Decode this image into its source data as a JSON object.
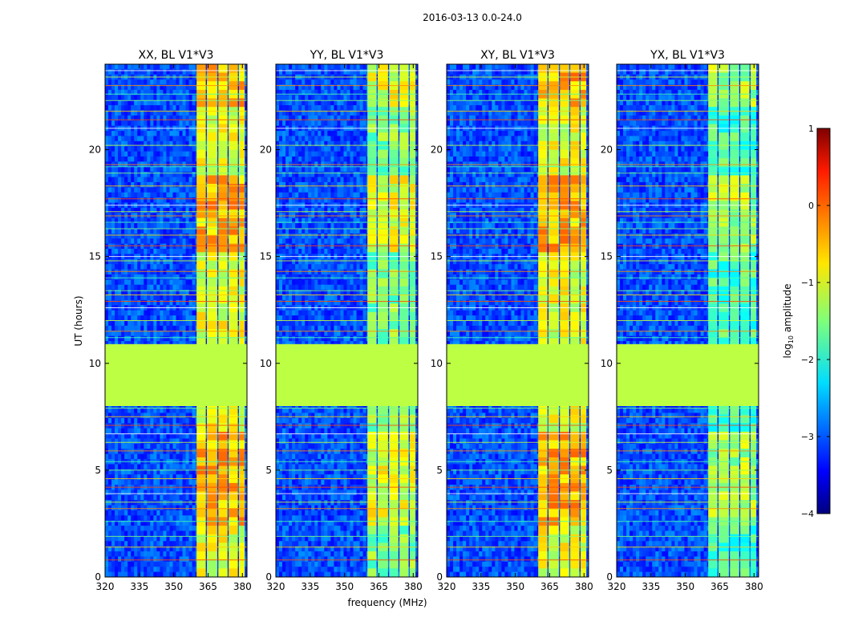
{
  "chart_data": {
    "type": "heatmap",
    "suptitle": "2016-03-13 0.0-24.0",
    "xlabel": "frequency (MHz)",
    "ylabel": "UT (hours)",
    "xlim": [
      320,
      382
    ],
    "ylim": [
      0,
      24
    ],
    "xticks": [
      "320",
      "335",
      "350",
      "365",
      "380"
    ],
    "xtick_values": [
      320,
      335,
      350,
      365,
      380
    ],
    "yticks": [
      "0",
      "5",
      "10",
      "15",
      "20"
    ],
    "ytick_values": [
      0,
      5,
      10,
      15,
      20
    ],
    "panels": [
      {
        "title": "XX, BL V1*V3",
        "band_max_log": -0.1
      },
      {
        "title": "YY, BL V1*V3",
        "band_max_log": -0.6
      },
      {
        "title": "XY, BL V1*V3",
        "band_max_log": -0.1
      },
      {
        "title": "YX, BL V1*V3",
        "band_max_log": -0.9
      }
    ],
    "flagged_gap_hours": [
      8.0,
      10.9
    ],
    "flagged_value_log": -1.2,
    "background_log": -3.0,
    "rfi_band_mhz": [
      360,
      381
    ],
    "rfi_subbands_mhz": [
      [
        360,
        364
      ],
      [
        364.5,
        369
      ],
      [
        369.5,
        373.5
      ],
      [
        374,
        378
      ],
      [
        378.5,
        381
      ]
    ],
    "rfi_line_hours": [
      0.8,
      1.4,
      1.9,
      2.6,
      3.2,
      3.5,
      3.9,
      4.2,
      4.6,
      5.0,
      5.4,
      5.9,
      6.3,
      6.7,
      7.1,
      7.5,
      7.9,
      11.2,
      11.5,
      12.0,
      12.6,
      12.9,
      13.2,
      13.4,
      14.0,
      14.3,
      14.8,
      15.0,
      15.5,
      16.0,
      16.3,
      16.6,
      16.9,
      17.1,
      17.4,
      17.7,
      18.3,
      18.9,
      19.2,
      19.3,
      20.2,
      21.0,
      21.4,
      21.8,
      22.3,
      22.6,
      23.0,
      23.4,
      23.7
    ],
    "rfi_line_colors": [
      "#ff4a00",
      "#ffd000",
      "#7fff7a",
      "#4affad",
      "#ff8c00",
      "#c8ff37",
      "#ffffff"
    ]
  },
  "colorbar": {
    "label": "log10 amplitude",
    "label_main": "log",
    "label_sub": "10",
    "label_rest": " amplitude",
    "range": [
      -4,
      1
    ],
    "ticks": [
      "1",
      "0",
      "−1",
      "−2",
      "−3",
      "−4"
    ],
    "tick_values": [
      1,
      0,
      -1,
      -2,
      -3,
      -4
    ]
  }
}
